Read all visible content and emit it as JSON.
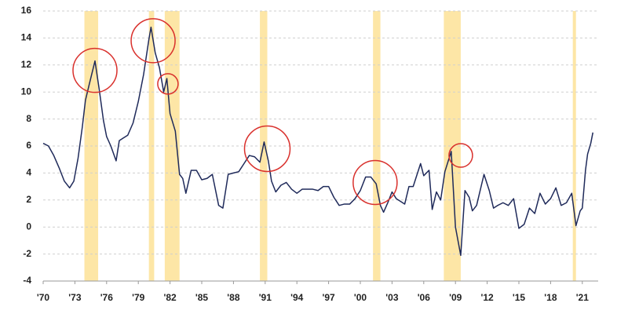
{
  "chart_data": {
    "type": "line",
    "x": [
      1970.0,
      1970.5,
      1971.0,
      1971.5,
      1972.0,
      1972.5,
      1972.9,
      1973.3,
      1973.7,
      1974.0,
      1974.4,
      1974.9,
      1975.3,
      1975.7,
      1976.0,
      1976.4,
      1976.9,
      1977.2,
      1977.6,
      1978.0,
      1978.5,
      1979.0,
      1979.5,
      1980.0,
      1980.2,
      1980.6,
      1981.0,
      1981.4,
      1981.7,
      1982.0,
      1982.5,
      1982.9,
      1983.2,
      1983.5,
      1984.0,
      1984.5,
      1985.0,
      1985.5,
      1986.0,
      1986.6,
      1987.0,
      1987.5,
      1988.0,
      1988.5,
      1989.0,
      1989.5,
      1990.0,
      1990.5,
      1990.9,
      1991.3,
      1991.6,
      1992.0,
      1992.5,
      1993.0,
      1993.5,
      1994.0,
      1994.5,
      1995.0,
      1995.5,
      1996.0,
      1996.5,
      1997.0,
      1997.5,
      1998.0,
      1998.5,
      1999.0,
      1999.5,
      2000.0,
      2000.5,
      2001.0,
      2001.5,
      2001.9,
      2002.2,
      2002.6,
      2003.0,
      2003.4,
      2003.8,
      2004.2,
      2004.6,
      2005.0,
      2005.7,
      2006.0,
      2006.5,
      2006.8,
      2007.2,
      2007.6,
      2008.0,
      2008.6,
      2009.0,
      2009.5,
      2009.9,
      2010.3,
      2010.6,
      2011.0,
      2011.7,
      2012.2,
      2012.6,
      2013.0,
      2013.5,
      2014.0,
      2014.5,
      2015.0,
      2015.5,
      2016.0,
      2016.5,
      2017.0,
      2017.5,
      2018.0,
      2018.5,
      2019.0,
      2019.5,
      2020.0,
      2020.4,
      2020.8,
      2021.0,
      2021.3,
      2021.5,
      2021.8,
      2022.0
    ],
    "series": [
      {
        "color": "#1f2a5a",
        "values": [
          6.2,
          6.0,
          5.3,
          4.4,
          3.4,
          2.9,
          3.4,
          5.1,
          7.4,
          9.4,
          10.7,
          12.3,
          10.2,
          7.9,
          6.7,
          6.0,
          4.9,
          6.4,
          6.6,
          6.8,
          7.7,
          9.3,
          11.3,
          13.9,
          14.8,
          12.9,
          11.8,
          10.0,
          11.0,
          8.4,
          7.1,
          3.9,
          3.6,
          2.5,
          4.2,
          4.2,
          3.5,
          3.6,
          3.9,
          1.6,
          1.4,
          3.9,
          4.0,
          4.1,
          4.7,
          5.3,
          5.2,
          4.8,
          6.3,
          4.9,
          3.4,
          2.6,
          3.1,
          3.3,
          2.8,
          2.5,
          2.8,
          2.8,
          2.8,
          2.7,
          3.0,
          3.0,
          2.2,
          1.6,
          1.7,
          1.7,
          2.1,
          2.7,
          3.7,
          3.7,
          3.2,
          1.6,
          1.1,
          1.8,
          2.6,
          2.1,
          1.9,
          1.7,
          3.0,
          3.0,
          4.7,
          3.8,
          4.2,
          1.3,
          2.6,
          2.0,
          4.1,
          5.6,
          0.0,
          -2.1,
          2.7,
          2.2,
          1.2,
          1.6,
          3.9,
          2.7,
          1.4,
          1.6,
          1.8,
          1.6,
          2.1,
          -0.1,
          0.2,
          1.4,
          1.0,
          2.5,
          1.7,
          2.1,
          2.9,
          1.6,
          1.8,
          2.5,
          0.1,
          1.2,
          1.4,
          4.2,
          5.4,
          6.2,
          7.0
        ]
      }
    ],
    "recessions": [
      [
        1973.9,
        1975.2
      ],
      [
        1980.0,
        1980.5
      ],
      [
        1981.5,
        1982.9
      ],
      [
        1990.5,
        1991.2
      ],
      [
        2001.2,
        2001.9
      ],
      [
        2007.9,
        2009.5
      ],
      [
        2020.1,
        2020.4
      ]
    ],
    "recession_color": "#fde6a6",
    "highlights": [
      {
        "x": 1974.9,
        "y": 11.6
      },
      {
        "x": 1980.4,
        "y": 13.8
      },
      {
        "x": 1981.8,
        "y": 10.6
      },
      {
        "x": 1991.2,
        "y": 5.8
      },
      {
        "x": 2001.4,
        "y": 3.3
      },
      {
        "x": 2009.5,
        "y": 5.3
      }
    ],
    "highlight_color": "#d9302c",
    "xlim": [
      1970,
      2022.5
    ],
    "xticks": [
      {
        "value": 1970,
        "label": "'70"
      },
      {
        "value": 1973,
        "label": "'73"
      },
      {
        "value": 1976,
        "label": "'76"
      },
      {
        "value": 1979,
        "label": "'79"
      },
      {
        "value": 1982,
        "label": "'82"
      },
      {
        "value": 1985,
        "label": "'85"
      },
      {
        "value": 1988,
        "label": "'88"
      },
      {
        "value": 1991,
        "label": "'91"
      },
      {
        "value": 1994,
        "label": "'94"
      },
      {
        "value": 1997,
        "label": "'97"
      },
      {
        "value": 2000,
        "label": "'00"
      },
      {
        "value": 2003,
        "label": "'03"
      },
      {
        "value": 2006,
        "label": "'06"
      },
      {
        "value": 2009,
        "label": "'09"
      },
      {
        "value": 2012,
        "label": "'12"
      },
      {
        "value": 2015,
        "label": "'15"
      },
      {
        "value": 2018,
        "label": "'18"
      },
      {
        "value": 2021,
        "label": "'21"
      }
    ],
    "ylim": [
      -4,
      16
    ],
    "yticks": [
      -4,
      -2,
      0,
      2,
      4,
      6,
      8,
      10,
      12,
      14,
      16
    ],
    "grid": true
  }
}
